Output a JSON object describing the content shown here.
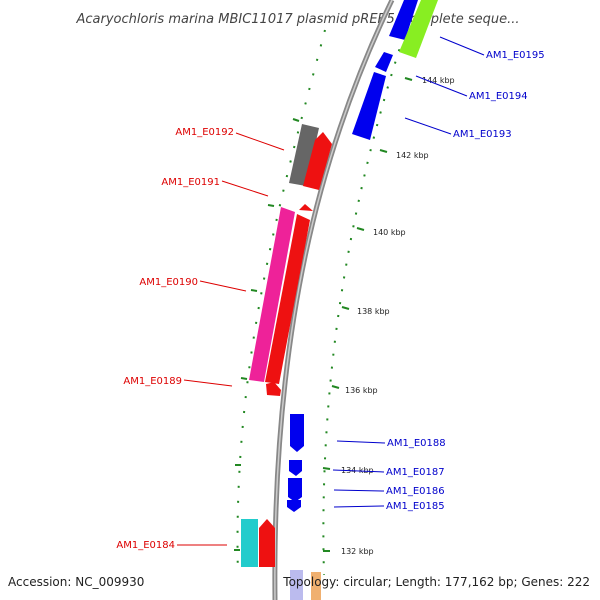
{
  "title": "Acaryochloris marina MBIC11017 plasmid pREB5, complete seque...",
  "footer": {
    "accession": "Accession: NC_009930",
    "topology": "Topology: circular; Length: 177,162 bp; Genes: 222"
  },
  "colors": {
    "reverse_label": "#dd0000",
    "forward_label": "#0000cc",
    "tick": "#228822",
    "backbone": "#888888"
  },
  "scale_labels": [
    "144 kbp",
    "142 kbp",
    "140 kbp",
    "138 kbp",
    "136 kbp",
    "134 kbp",
    "132 kbp"
  ],
  "left_genes": [
    {
      "label": "AM1_E0192",
      "color": "#dd0000"
    },
    {
      "label": "AM1_E0191",
      "color": "#dd0000"
    },
    {
      "label": "AM1_E0190",
      "color": "#dd0000"
    },
    {
      "label": "AM1_E0189",
      "color": "#dd0000"
    },
    {
      "label": "AM1_E0184",
      "color": "#dd0000"
    }
  ],
  "right_genes": [
    {
      "label": "AM1_E0195",
      "color": "#0000cc"
    },
    {
      "label": "AM1_E0194",
      "color": "#0000cc"
    },
    {
      "label": "AM1_E0193",
      "color": "#0000cc"
    },
    {
      "label": "AM1_E0188",
      "color": "#0000cc"
    },
    {
      "label": "AM1_E0187",
      "color": "#0000cc"
    },
    {
      "label": "AM1_E0186",
      "color": "#0000cc"
    },
    {
      "label": "AM1_E0185",
      "color": "#0000cc"
    }
  ]
}
